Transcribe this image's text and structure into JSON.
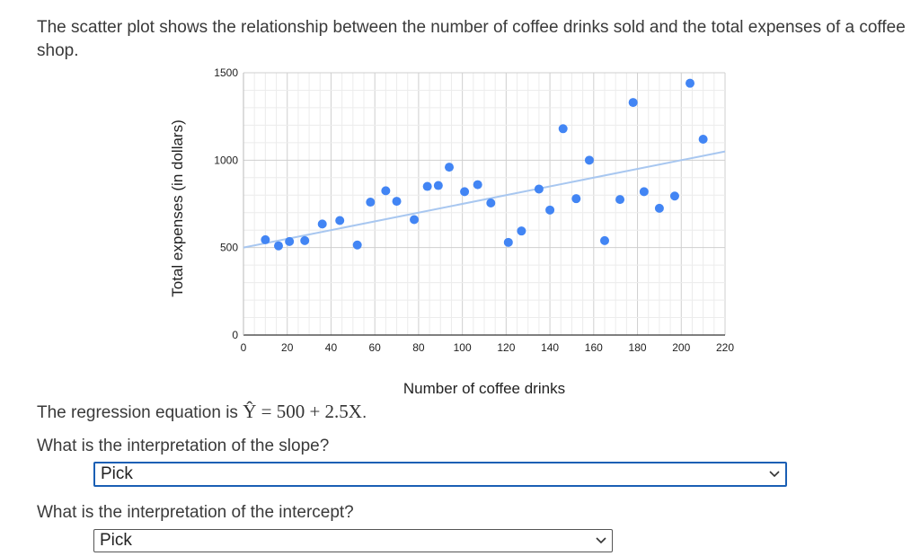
{
  "intro_text": "The scatter plot shows the relationship between the number of coffee drinks sold and the total expenses of a coffee shop.",
  "chart_data": {
    "type": "scatter",
    "xlabel": "Number of coffee drinks",
    "ylabel": "Total expenses (in dollars)",
    "xlim": [
      0,
      220
    ],
    "ylim": [
      0,
      1500
    ],
    "x_ticks": [
      "0",
      "20",
      "40",
      "60",
      "80",
      "100",
      "120",
      "140",
      "160",
      "180",
      "200",
      "220"
    ],
    "y_ticks": [
      "0",
      "500",
      "1000",
      "1500"
    ],
    "grid": true,
    "point_color": "#4285f4",
    "line_color": "#a8c7f0",
    "regression_line": {
      "intercept": 500,
      "slope": 2.5
    },
    "points": [
      {
        "x": 10,
        "y": 545
      },
      {
        "x": 16,
        "y": 510
      },
      {
        "x": 21,
        "y": 535
      },
      {
        "x": 28,
        "y": 540
      },
      {
        "x": 36,
        "y": 635
      },
      {
        "x": 44,
        "y": 655
      },
      {
        "x": 52,
        "y": 515
      },
      {
        "x": 58,
        "y": 760
      },
      {
        "x": 65,
        "y": 825
      },
      {
        "x": 70,
        "y": 765
      },
      {
        "x": 78,
        "y": 660
      },
      {
        "x": 84,
        "y": 850
      },
      {
        "x": 89,
        "y": 855
      },
      {
        "x": 94,
        "y": 960
      },
      {
        "x": 101,
        "y": 820
      },
      {
        "x": 107,
        "y": 860
      },
      {
        "x": 113,
        "y": 755
      },
      {
        "x": 121,
        "y": 530
      },
      {
        "x": 127,
        "y": 595
      },
      {
        "x": 135,
        "y": 835
      },
      {
        "x": 140,
        "y": 715
      },
      {
        "x": 146,
        "y": 1180
      },
      {
        "x": 152,
        "y": 780
      },
      {
        "x": 158,
        "y": 1000
      },
      {
        "x": 165,
        "y": 540
      },
      {
        "x": 172,
        "y": 775
      },
      {
        "x": 178,
        "y": 1330
      },
      {
        "x": 183,
        "y": 820
      },
      {
        "x": 190,
        "y": 725
      },
      {
        "x": 197,
        "y": 795
      },
      {
        "x": 204,
        "y": 1440
      },
      {
        "x": 210,
        "y": 1120
      }
    ]
  },
  "regression": {
    "prefix": "The regression equation is ",
    "equation": "Ŷ = 500 + 2.5X",
    "suffix": "."
  },
  "q1": {
    "text": "What is the interpretation of the slope?",
    "select_value": "Pick"
  },
  "q2": {
    "text": "What is the interpretation of the intercept?",
    "select_value": "Pick"
  }
}
